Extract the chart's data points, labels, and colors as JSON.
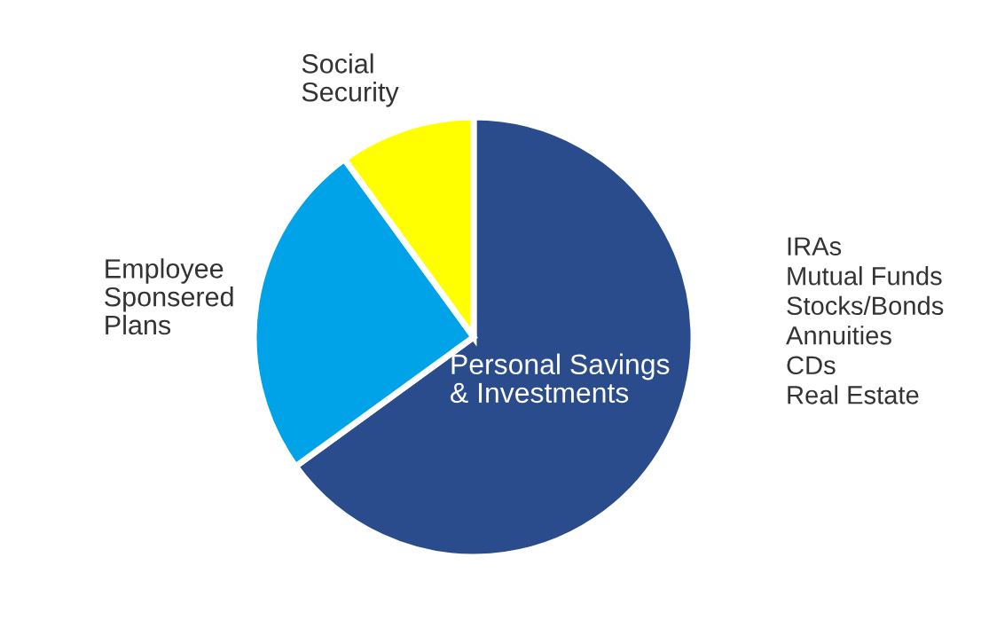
{
  "chart_data": {
    "type": "pie",
    "categories": [
      "Personal Savings\n& Investments",
      "Employee\nSponsered\nPlans",
      "Social\nSecurity"
    ],
    "values": [
      65,
      25,
      10
    ],
    "colors": [
      "#2b4c8c",
      "#00a3e8",
      "#ffff00"
    ],
    "annotations": [
      "IRAs\nMutual Funds\nStocks/Bonds\nAnnuities\nCDs\nReal Estate"
    ]
  }
}
